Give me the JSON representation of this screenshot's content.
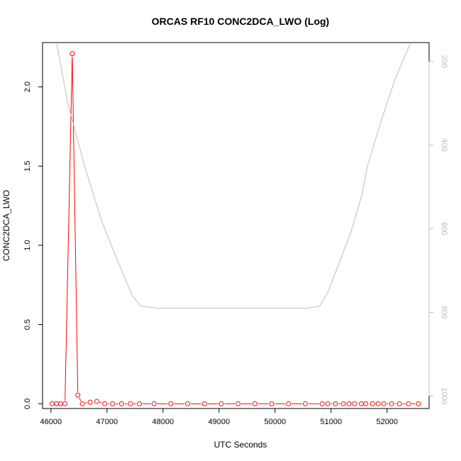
{
  "chart_data": {
    "type": "line",
    "title": "ORCAS RF10 CONC2DCA_LWO (Log)",
    "xlabel": "UTC Seconds",
    "ylabel": "CONC2DCA_LWO",
    "xlim": [
      45850,
      52750
    ],
    "ylim": [
      -0.03,
      2.28
    ],
    "y2lim": [
      1030,
      155
    ],
    "x_ticks": [
      46000,
      47000,
      48000,
      49000,
      50000,
      51000,
      52000
    ],
    "y_ticks": [
      0.0,
      0.5,
      1.0,
      1.5,
      2.0
    ],
    "y_tick_labels": [
      "0.0",
      "0.5",
      "1.0",
      "1.5",
      "2.0"
    ],
    "y2_ticks": [
      200,
      400,
      600,
      800,
      1000
    ],
    "y2_tick_labels": [
      "200",
      "400",
      "600",
      "800",
      "1000"
    ],
    "grid": false,
    "legend": "none",
    "series": [
      {
        "color": "#ff0000",
        "marker": "open-circle",
        "x": [
          46020,
          46100,
          46170,
          46250,
          46380,
          46480,
          46560,
          46700,
          46820,
          46960,
          47100,
          47260,
          47420,
          47580,
          47840,
          48140,
          48440,
          48740,
          49040,
          49340,
          49640,
          49940,
          50240,
          50540,
          50840,
          50940,
          51080,
          51220,
          51320,
          51420,
          51540,
          51620,
          51740,
          51840,
          51940,
          52080,
          52220,
          52380,
          52560
        ],
        "y": [
          0.0,
          0.0,
          0.0,
          0.0,
          2.21,
          0.055,
          0.0,
          0.01,
          0.015,
          0.0,
          0.0,
          0.0,
          0.0,
          0.0,
          0.0,
          0.0,
          0.0,
          0.0,
          0.0,
          0.0,
          0.0,
          0.0,
          0.0,
          0.0,
          0.0,
          0.0,
          0.0,
          0.0,
          0.0,
          0.0,
          0.0,
          0.0,
          0.0,
          0.0,
          0.0,
          0.0,
          0.0,
          0.0,
          0.0
        ]
      },
      {
        "color": "#bdbdbd",
        "axis": "right",
        "marker": "none",
        "x": [
          46100,
          46300,
          46600,
          46900,
          47200,
          47450,
          47600,
          47900,
          48300,
          49000,
          50000,
          50600,
          50800,
          50950,
          51150,
          51350,
          51550,
          51650,
          51900,
          52150,
          52420
        ],
        "y": [
          155,
          300,
          450,
          580,
          680,
          760,
          785,
          790,
          790,
          790,
          790,
          790,
          785,
          750,
          680,
          610,
          520,
          450,
          340,
          240,
          155
        ]
      }
    ]
  }
}
